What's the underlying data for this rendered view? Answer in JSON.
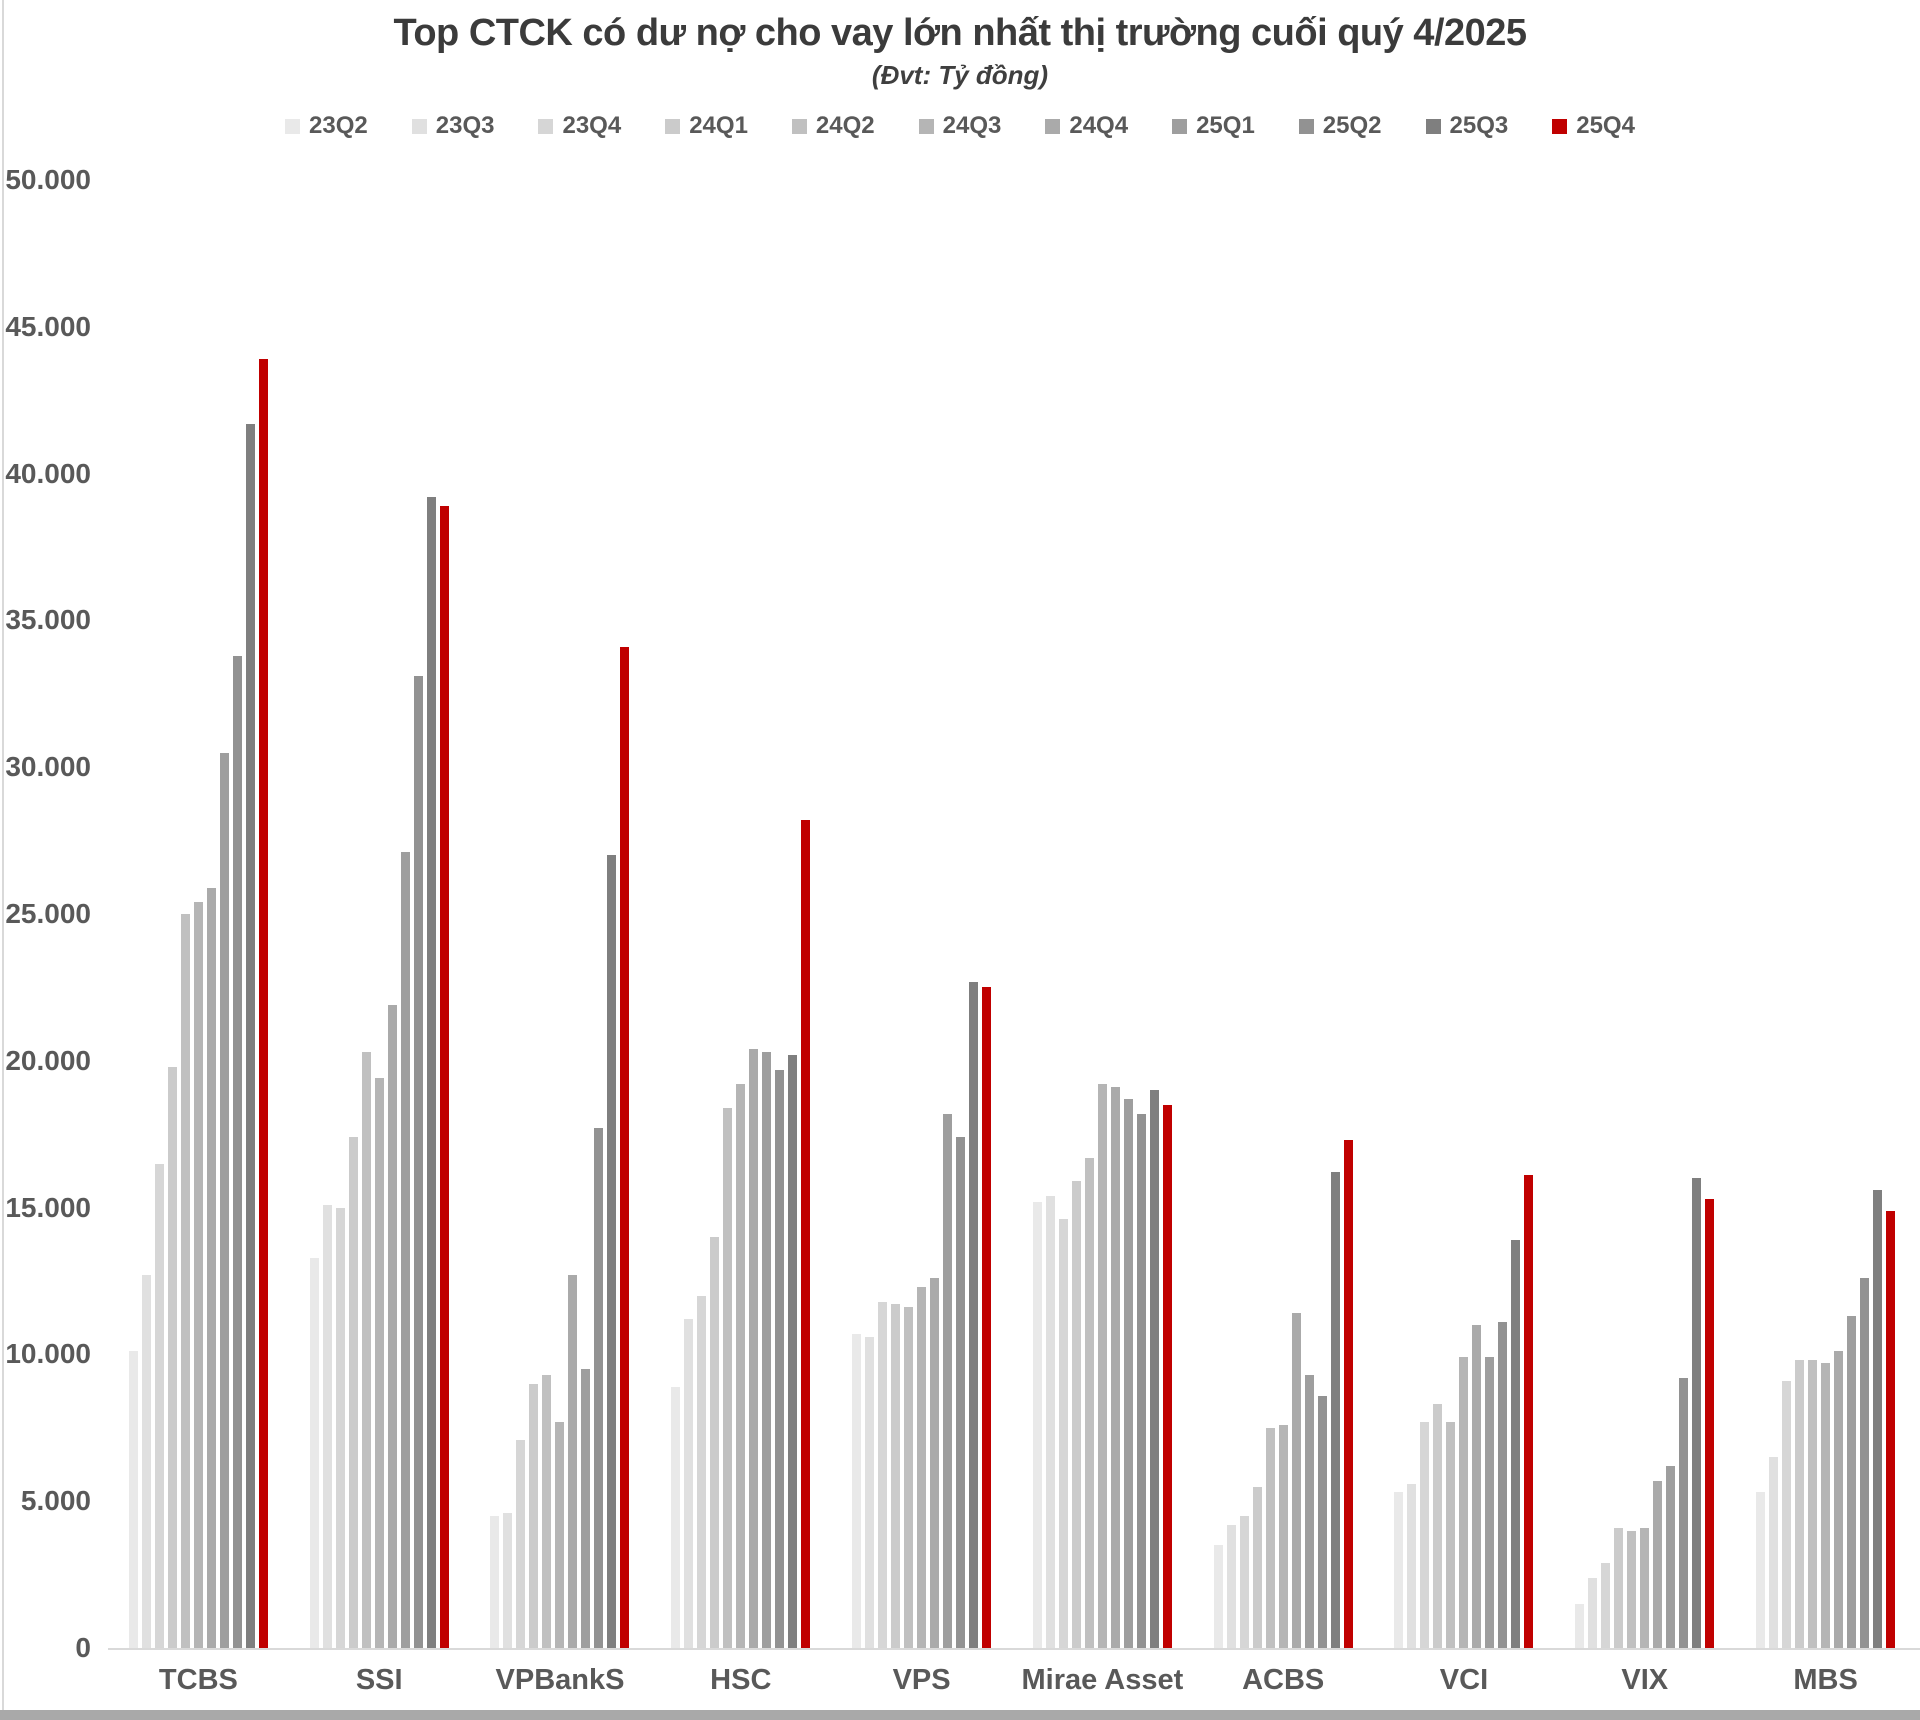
{
  "chart_data": {
    "type": "bar",
    "title": "Top CTCK có dư nợ cho vay lớn nhất thị trường cuối quý 4/2025",
    "subtitle": "(Đvt: Tỷ đồng)",
    "categories": [
      "TCBS",
      "SSI",
      "VPBankS",
      "HSC",
      "VPS",
      "Mirae Asset",
      "ACBS",
      "VCI",
      "VIX",
      "MBS"
    ],
    "series": [
      {
        "name": "23Q2",
        "color": "#e9e9e9",
        "values": [
          10100,
          13300,
          4500,
          8900,
          10700,
          15200,
          3500,
          5300,
          1500,
          5300
        ]
      },
      {
        "name": "23Q3",
        "color": "#e0e0e0",
        "values": [
          12700,
          15100,
          4600,
          11200,
          10600,
          15400,
          4200,
          5600,
          2400,
          6500
        ]
      },
      {
        "name": "23Q4",
        "color": "#d6d6d6",
        "values": [
          16500,
          15000,
          7100,
          12000,
          11800,
          14600,
          4500,
          7700,
          2900,
          9100
        ]
      },
      {
        "name": "24Q1",
        "color": "#cbcbcb",
        "values": [
          19800,
          17400,
          9000,
          14000,
          11700,
          15900,
          5500,
          8300,
          4100,
          9800
        ]
      },
      {
        "name": "24Q2",
        "color": "#c0c0c0",
        "values": [
          25000,
          20300,
          9300,
          18400,
          11600,
          16700,
          7500,
          7700,
          4000,
          9800
        ]
      },
      {
        "name": "24Q3",
        "color": "#b5b5b5",
        "values": [
          25400,
          19400,
          7700,
          19200,
          12300,
          19200,
          7600,
          9900,
          4100,
          9700
        ]
      },
      {
        "name": "24Q4",
        "color": "#aaaaaa",
        "values": [
          25900,
          21900,
          12700,
          20400,
          12600,
          19100,
          11400,
          11000,
          5700,
          10100
        ]
      },
      {
        "name": "25Q1",
        "color": "#9e9e9e",
        "values": [
          30500,
          27100,
          9500,
          20300,
          18200,
          18700,
          9300,
          9900,
          6200,
          11300
        ]
      },
      {
        "name": "25Q2",
        "color": "#929292",
        "values": [
          33800,
          33100,
          17700,
          19700,
          17400,
          18200,
          8600,
          11100,
          9200,
          12600
        ]
      },
      {
        "name": "25Q3",
        "color": "#7f7f7f",
        "values": [
          41700,
          39200,
          27000,
          20200,
          22700,
          19000,
          16200,
          13900,
          16000,
          15600
        ]
      },
      {
        "name": "25Q4",
        "color": "#c00000",
        "values": [
          43900,
          38900,
          34100,
          28200,
          22500,
          18500,
          17300,
          16100,
          15300,
          14900
        ]
      }
    ],
    "ylim": [
      0,
      50000
    ],
    "yticks": [
      "0",
      "5.000",
      "10.000",
      "15.000",
      "20.000",
      "25.000",
      "30.000",
      "35.000",
      "40.000",
      "45.000",
      "50.000"
    ],
    "grid": false,
    "legend_position": "top",
    "accent_color": "#c00000"
  }
}
